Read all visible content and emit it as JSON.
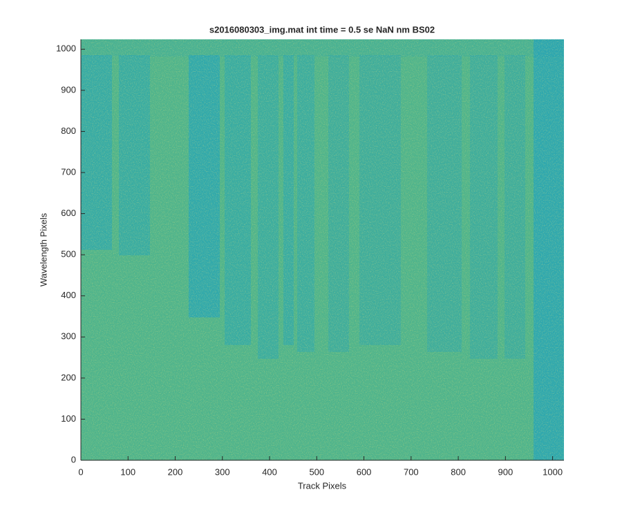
{
  "chart_data": {
    "type": "image",
    "title": "s2016080303_img.mat int time = 0.5 se  NaN nm BS02",
    "x_label": "Track Pixels",
    "y_label": "Wavelength Pixels",
    "xlim": [
      0,
      1024
    ],
    "ylim": [
      0,
      1024
    ],
    "xticks": [
      0,
      100,
      200,
      300,
      400,
      500,
      600,
      700,
      800,
      900,
      1000
    ],
    "yticks": [
      0,
      100,
      200,
      300,
      400,
      500,
      600,
      700,
      800,
      900,
      1000
    ]
  }
}
